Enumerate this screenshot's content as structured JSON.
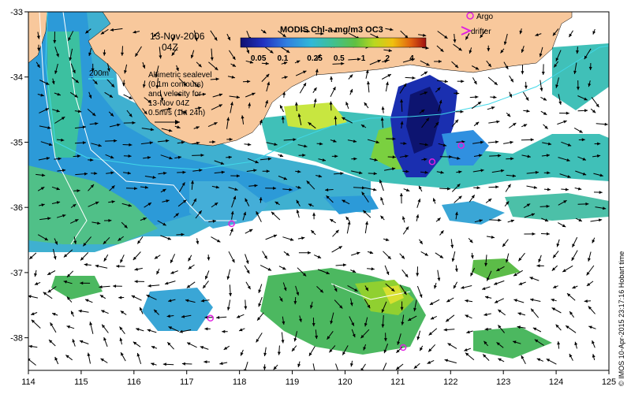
{
  "axes": {
    "x_ticks": [
      "114",
      "115",
      "116",
      "117",
      "118",
      "119",
      "120",
      "121",
      "122",
      "123",
      "124",
      "125"
    ],
    "y_ticks": [
      "-33",
      "-34",
      "-35",
      "-36",
      "-37",
      "-38"
    ]
  },
  "annotations": {
    "date": "13-Nov-2006",
    "time": "04Z",
    "isobath": "200m",
    "sealevel_lines": [
      "Altimetric sealevel",
      "(0.1m contours)",
      "and velocity for",
      "13-Nov 04Z",
      "0.5m/s (1kt 24h)"
    ]
  },
  "colorbar": {
    "title": "MODIS Chl-a mg/m3 OC3",
    "ticks": [
      "0.05",
      "0.1",
      "0.25",
      "0.5",
      "1",
      "2",
      "4"
    ],
    "values": [
      0.05,
      0.1,
      0.25,
      0.5,
      1,
      2,
      4
    ],
    "range": [
      0.03,
      6
    ],
    "scale": "log"
  },
  "legend": {
    "argo": "Argo",
    "drifter": "drifter"
  },
  "credit": "© IMOS 10-Apr-2015 23:17:16 Hobart time",
  "colors": {
    "land": "#f8c89c",
    "argo_marker": "#e020e0",
    "isobath": "#40d8e8",
    "arrow": "#000000"
  },
  "extent": {
    "lon": [
      114,
      125
    ],
    "lat": [
      -38.5,
      -33
    ]
  },
  "argo_floats": [
    {
      "lon": 117.85,
      "lat": -36.25
    },
    {
      "lon": 117.45,
      "lat": -37.7
    },
    {
      "lon": 121.1,
      "lat": -38.15
    },
    {
      "lon": 121.65,
      "lat": -35.3
    },
    {
      "lon": 122.2,
      "lat": -35.05
    }
  ]
}
